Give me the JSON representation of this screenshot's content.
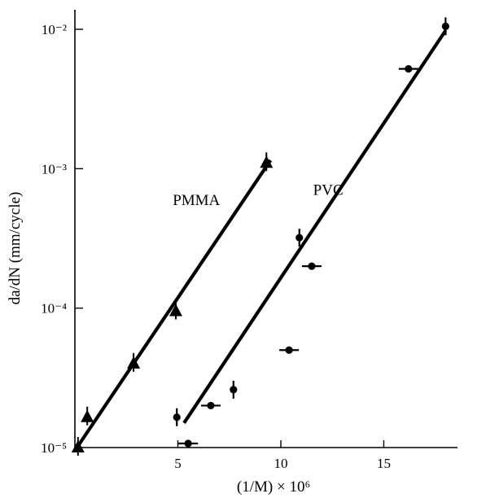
{
  "chart_data": {
    "type": "scatter",
    "title": "",
    "xlabel": "(1/M) × 10⁶",
    "ylabel": "da/dN (mm/cycle)",
    "xlim": [
      0,
      18.5
    ],
    "ylim": [
      1e-05,
      0.01
    ],
    "yscale": "log",
    "grid": false,
    "x_ticks": [
      {
        "value": 5,
        "label": "5"
      },
      {
        "value": 10,
        "label": "10"
      },
      {
        "value": 15,
        "label": "15"
      }
    ],
    "y_ticks": [
      {
        "value": 1e-05,
        "label": "10⁻⁵"
      },
      {
        "value": 0.0001,
        "label": "10⁻⁴"
      },
      {
        "value": 0.001,
        "label": "10⁻³"
      },
      {
        "value": 0.01,
        "label": "10⁻²"
      }
    ],
    "series": [
      {
        "name": "PMMA",
        "marker": "triangle",
        "points": [
          {
            "x": 0.15,
            "y": 1e-05
          },
          {
            "x": 0.6,
            "y": 1.65e-05
          },
          {
            "x": 2.85,
            "y": 4e-05
          },
          {
            "x": 4.9,
            "y": 9.5e-05
          },
          {
            "x": 9.3,
            "y": 0.0011
          }
        ],
        "fit": {
          "x": [
            0.1,
            9.5
          ],
          "y": [
            1e-05,
            0.00115
          ]
        }
      },
      {
        "name": "PVC",
        "marker": "circle",
        "points": [
          {
            "x": 4.95,
            "y": 1.65e-05
          },
          {
            "x": 5.5,
            "y": 1.07e-05
          },
          {
            "x": 6.6,
            "y": 2e-05
          },
          {
            "x": 7.7,
            "y": 2.6e-05
          },
          {
            "x": 10.4,
            "y": 5e-05
          },
          {
            "x": 10.9,
            "y": 0.00032
          },
          {
            "x": 11.5,
            "y": 0.0002
          },
          {
            "x": 16.2,
            "y": 0.0052
          },
          {
            "x": 18.0,
            "y": 0.0105
          }
        ],
        "fit": {
          "x": [
            5.3,
            18.0
          ],
          "y": [
            1.5e-05,
            0.0098
          ]
        }
      }
    ],
    "annotations": [
      {
        "text": "PMMA",
        "x": 5.9,
        "y": 0.00055
      },
      {
        "text": "PVC",
        "x": 12.3,
        "y": 0.00065
      }
    ]
  }
}
